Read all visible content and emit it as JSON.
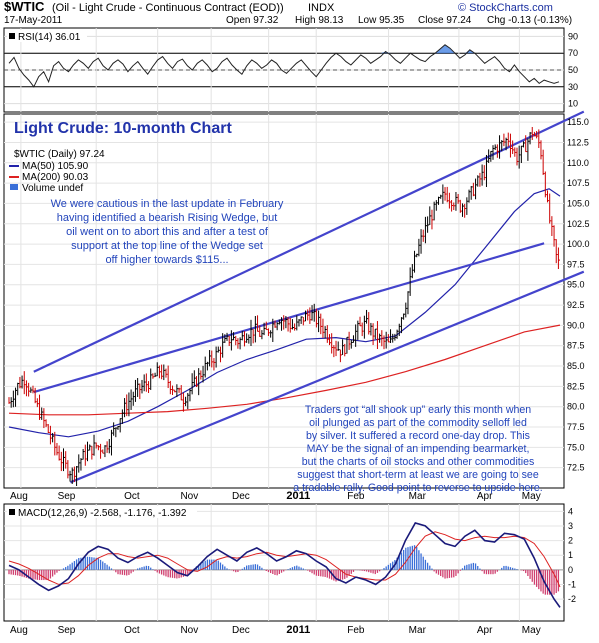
{
  "header": {
    "ticker": "$WTIC",
    "name": "(Oil - Light Crude - Continuous Contract (EOD))",
    "exchange": "INDX",
    "date": "17-May-2011",
    "open": "Open 97.32",
    "high": "High 98.13",
    "low": "Low 95.35",
    "close": "Close 97.24",
    "chg": "Chg -0.13 (-0.13%)",
    "watermark": "© StockCharts.com"
  },
  "panel_title": "Light Crude: 10-month Chart",
  "legend": {
    "price": "$WTIC (Daily) 97.24",
    "ma50": "MA(50) 105.90",
    "ma200": "MA(200) 90.03",
    "volume": "Volume undef"
  },
  "notes": {
    "note1": [
      "We were cautious in the last update in February",
      "having identified a bearish Rising Wedge, but",
      "oil went on to abort this and after a test of",
      "support at the top line of the Wedge set",
      "off higher towards $115..."
    ],
    "note2": [
      "Traders got “all shook up” early this month when",
      "oil plunged as part of the commodity selloff led",
      "by silver. It suffered a record one-day drop. This",
      "MAY be the signal of an impending bearmarket,",
      "but the charts of oil stocks and other commodities",
      "suggest that short-term at least we are going to see",
      "a tradable rally. Good point to reverse to upside here."
    ]
  },
  "colors": {
    "price_up": "#000000",
    "price_down": "#cc0000",
    "ma50": "#2222aa",
    "ma200": "#dd2222",
    "trendline": "#4444cc",
    "note_text": "#2244bb",
    "rsi_line": "#222222",
    "macd_line": "#1a1a7a",
    "signal_line": "#dd2222",
    "hist_pos": "#3a6fd8",
    "hist_neg": "#d04070"
  },
  "chart_data": [
    {
      "type": "line",
      "title": "RSI(14) 36.01",
      "ylim": [
        0,
        100
      ],
      "yticks": [
        10,
        30,
        50,
        70,
        90
      ],
      "reference_lines": [
        30,
        50,
        70
      ],
      "x": [
        0,
        5,
        10,
        15,
        20,
        25,
        30,
        35,
        40,
        45,
        50,
        55,
        60,
        65,
        70,
        75,
        80,
        85,
        90,
        95,
        100,
        105,
        110,
        115,
        120,
        125,
        130,
        135,
        140,
        145,
        150,
        155,
        160,
        165,
        170,
        175,
        180,
        185,
        190,
        195,
        200,
        205,
        210,
        215,
        220,
        225,
        230,
        235,
        240,
        245,
        250,
        255,
        260,
        265,
        270,
        275,
        280,
        285,
        290,
        295,
        300,
        305,
        310,
        315,
        320,
        325,
        330,
        335,
        340,
        345,
        350,
        355,
        360,
        365,
        370,
        375,
        380,
        385,
        390,
        395,
        400,
        405,
        410,
        415,
        420,
        425,
        430,
        435,
        440,
        445,
        450,
        455,
        460,
        465,
        470,
        475,
        480,
        485,
        490,
        495,
        500,
        505,
        510,
        515,
        520,
        525,
        530,
        535,
        540,
        545,
        550,
        555
      ],
      "values": [
        58,
        65,
        52,
        44,
        38,
        30,
        42,
        48,
        36,
        55,
        60,
        52,
        48,
        56,
        62,
        58,
        52,
        60,
        64,
        55,
        50,
        58,
        62,
        57,
        48,
        55,
        60,
        52,
        45,
        54,
        62,
        66,
        58,
        52,
        60,
        63,
        55,
        50,
        58,
        62,
        56,
        48,
        52,
        60,
        64,
        56,
        50,
        45,
        55,
        62,
        58,
        52,
        56,
        62,
        58,
        50,
        46,
        52,
        58,
        62,
        55,
        48,
        42,
        50,
        58,
        65,
        70,
        66,
        60,
        56,
        62,
        68,
        64,
        58,
        62,
        66,
        72,
        68,
        62,
        58,
        64,
        70,
        66,
        62,
        60,
        66,
        70,
        75,
        80,
        76,
        70,
        64,
        68,
        74,
        70,
        64,
        58,
        62,
        66,
        60,
        52,
        48,
        56,
        48,
        42,
        36,
        40,
        34,
        38,
        36,
        34,
        36
      ],
      "markers": []
    },
    {
      "type": "line",
      "title": "$WTIC (Daily) 97.24",
      "x_ticks": [
        "Aug",
        "Sep",
        "Oct",
        "Nov",
        "Dec",
        "2011",
        "Feb",
        "Mar",
        "Apr",
        "May"
      ],
      "ylim": [
        70,
        116
      ],
      "yticks": [
        72.5,
        75,
        77.5,
        80,
        82.5,
        85,
        87.5,
        90,
        92.5,
        95,
        97.5,
        100,
        102.5,
        105,
        107.5,
        110,
        112.5,
        115
      ],
      "series": [
        {
          "name": "$WTIC (Daily) 97.24",
          "t": [
            0,
            8,
            16,
            24,
            32,
            40,
            48,
            56,
            64,
            72,
            80,
            88,
            96,
            104,
            112,
            120,
            128,
            136,
            144,
            152,
            160,
            168,
            176,
            184,
            192,
            200,
            208,
            216,
            224,
            232,
            240,
            248,
            256,
            264,
            272,
            280,
            288,
            296,
            304,
            312,
            320,
            328,
            336,
            344,
            352,
            360,
            368,
            376,
            384,
            392,
            400,
            408,
            416,
            424,
            432,
            440,
            448,
            456,
            464,
            472,
            480,
            488,
            496,
            504,
            512,
            520,
            528,
            536,
            544,
            552,
            556
          ],
          "v": [
            80.5,
            82.5,
            83.5,
            81.2,
            79.0,
            76.8,
            74.5,
            72.8,
            71.8,
            73.5,
            74.5,
            75.2,
            74.8,
            76.5,
            78.8,
            80.5,
            81.8,
            82.6,
            83.2,
            84.5,
            83.2,
            82.0,
            81.0,
            82.2,
            83.8,
            85.2,
            86.2,
            87.6,
            88.5,
            88.0,
            89.1,
            89.4,
            88.7,
            89.8,
            91.0,
            90.4,
            89.6,
            90.8,
            91.5,
            90.4,
            89.2,
            87.6,
            86.8,
            88.3,
            89.5,
            90.2,
            89.0,
            88.1,
            87.6,
            89.8,
            92.5,
            97.4,
            100.6,
            103.0,
            104.8,
            106.2,
            105.4,
            104.6,
            105.8,
            107.4,
            108.9,
            111.6,
            112.2,
            113.0,
            110.6,
            111.8,
            113.8,
            112.1,
            104.0,
            98.5,
            97.24
          ]
        },
        {
          "name": "MA(50) 105.90",
          "t": [
            0,
            30,
            60,
            90,
            120,
            150,
            180,
            210,
            240,
            270,
            300,
            330,
            360,
            390,
            420,
            450,
            480,
            510,
            530,
            545,
            556
          ],
          "v": [
            77.5,
            76.8,
            76.3,
            77.0,
            78.2,
            80.0,
            82.0,
            84.2,
            85.8,
            87.0,
            88.3,
            88.5,
            88.0,
            88.7,
            91.6,
            95.0,
            99.5,
            104.0,
            106.2,
            106.8,
            105.9
          ]
        },
        {
          "name": "MA(200) 90.03",
          "t": [
            0,
            40,
            80,
            120,
            160,
            200,
            240,
            280,
            320,
            360,
            400,
            440,
            480,
            520,
            556
          ],
          "v": [
            79.2,
            79.0,
            79.0,
            79.2,
            79.4,
            79.8,
            80.3,
            81.1,
            82.0,
            83.0,
            84.3,
            85.8,
            87.5,
            89.2,
            90.03
          ]
        },
        {
          "name": "upper channel line",
          "t": [
            25,
            580
          ],
          "v": [
            84.3,
            116.3
          ]
        },
        {
          "name": "wedge top line",
          "t": [
            25,
            540
          ],
          "v": [
            81.8,
            100.1
          ]
        },
        {
          "name": "lower channel line",
          "t": [
            62,
            580
          ],
          "v": [
            70.7,
            96.6
          ]
        }
      ]
    },
    {
      "type": "line",
      "title": "MACD(12,26,9) -2.568, -1.176, -1.392",
      "ylim": [
        -3.5,
        4.5
      ],
      "yticks": [
        -2,
        -1,
        0,
        1,
        2,
        3,
        4
      ],
      "x": [
        0,
        10,
        20,
        30,
        40,
        50,
        60,
        70,
        80,
        90,
        100,
        110,
        120,
        130,
        140,
        150,
        160,
        170,
        180,
        190,
        200,
        210,
        220,
        230,
        240,
        250,
        260,
        270,
        280,
        290,
        300,
        310,
        320,
        330,
        340,
        350,
        360,
        370,
        380,
        390,
        400,
        410,
        420,
        430,
        440,
        450,
        460,
        470,
        480,
        490,
        500,
        510,
        520,
        530,
        540,
        550,
        556
      ],
      "series": [
        {
          "name": "MACD",
          "values": [
            0.3,
            0.0,
            -0.5,
            -1.0,
            -1.4,
            -1.1,
            -0.6,
            0.4,
            1.2,
            1.6,
            1.4,
            0.8,
            0.5,
            0.9,
            1.2,
            0.8,
            0.3,
            -0.2,
            -0.4,
            0.2,
            0.9,
            1.4,
            1.0,
            0.6,
            1.2,
            1.5,
            1.1,
            0.6,
            0.9,
            1.3,
            1.1,
            0.6,
            0.2,
            -0.6,
            -0.9,
            -0.5,
            -0.7,
            -1.0,
            -0.5,
            0.4,
            2.0,
            3.2,
            3.0,
            2.4,
            1.8,
            1.6,
            2.3,
            2.7,
            2.0,
            1.9,
            2.5,
            2.4,
            2.1,
            0.8,
            -0.8,
            -2.0,
            -2.568
          ]
        },
        {
          "name": "Signal",
          "values": [
            0.6,
            0.4,
            0.1,
            -0.3,
            -0.7,
            -1.0,
            -0.9,
            -0.4,
            0.3,
            0.8,
            1.1,
            1.1,
            0.9,
            0.8,
            0.9,
            1.0,
            0.8,
            0.4,
            0.0,
            -0.1,
            0.2,
            0.7,
            0.9,
            0.8,
            0.9,
            1.1,
            1.2,
            1.0,
            0.9,
            1.0,
            1.1,
            1.0,
            0.7,
            0.2,
            -0.3,
            -0.5,
            -0.6,
            -0.7,
            -0.7,
            -0.3,
            0.5,
            1.5,
            2.3,
            2.6,
            2.4,
            2.1,
            2.0,
            2.2,
            2.3,
            2.2,
            2.2,
            2.3,
            2.2,
            1.8,
            0.9,
            -0.3,
            -1.176
          ]
        }
      ]
    }
  ],
  "rsi_title": "RSI(14) 36.01",
  "macd_title": "MACD(12,26,9) -2.568, -1.176, -1.392",
  "x_labels": [
    "Aug",
    "Sep",
    "Oct",
    "Nov",
    "Dec",
    "2011",
    "Feb",
    "Mar",
    "Apr",
    "May"
  ]
}
